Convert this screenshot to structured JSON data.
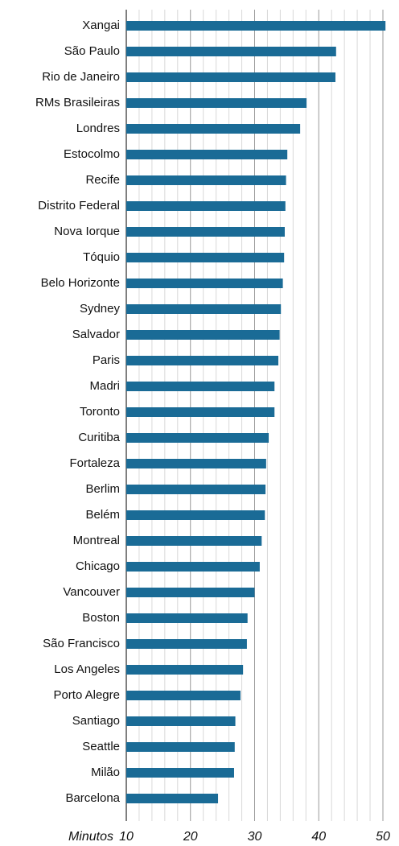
{
  "chart_data": {
    "type": "bar",
    "orientation": "horizontal",
    "categories": [
      "Xangai",
      "São Paulo",
      "Rio de Janeiro",
      "RMs Brasileiras",
      "Londres",
      "Estocolmo",
      "Recife",
      "Distrito Federal",
      "Nova Iorque",
      "Tóquio",
      "Belo Horizonte",
      "Sydney",
      "Salvador",
      "Paris",
      "Madri",
      "Toronto",
      "Curitiba",
      "Fortaleza",
      "Berlim",
      "Belém",
      "Montreal",
      "Chicago",
      "Vancouver",
      "Boston",
      "São Francisco",
      "Los Angeles",
      "Porto Alegre",
      "Santiago",
      "Seattle",
      "Milão",
      "Barcelona"
    ],
    "values": [
      50.4,
      42.7,
      42.6,
      38.1,
      37.1,
      35.1,
      34.9,
      34.8,
      34.7,
      34.6,
      34.4,
      34.1,
      33.9,
      33.7,
      33.1,
      33.1,
      32.2,
      31.8,
      31.7,
      31.6,
      31.1,
      30.8,
      30.0,
      28.9,
      28.8,
      28.2,
      27.8,
      27.0,
      26.9,
      26.8,
      24.3
    ],
    "color": "#1a6b96",
    "x_label": "Minutos",
    "xlim": [
      10,
      50
    ],
    "xticks": [
      10,
      20,
      30,
      40,
      50
    ],
    "minor_xticks": [
      12,
      14,
      16,
      18,
      22,
      24,
      26,
      28,
      32,
      34,
      36,
      38,
      42,
      44,
      46,
      48
    ],
    "grid": true
  }
}
